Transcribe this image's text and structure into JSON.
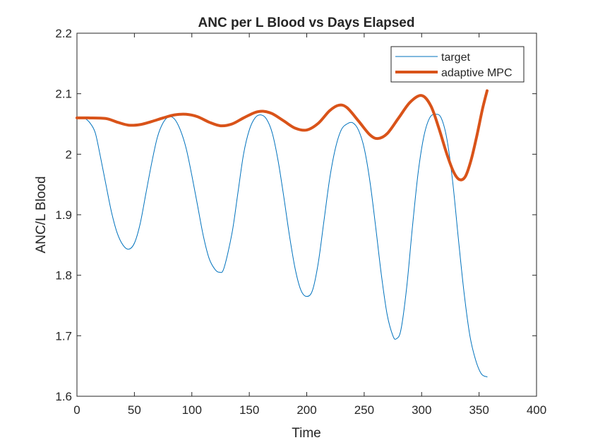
{
  "chart_data": {
    "type": "line",
    "title": "ANC per L Blood vs Days Elapsed",
    "xlabel": "Time",
    "ylabel": "ANC/L Blood",
    "xlim": [
      0,
      400
    ],
    "ylim": [
      1.6,
      2.2
    ],
    "xticks": [
      "0",
      "50",
      "100",
      "150",
      "200",
      "250",
      "300",
      "350",
      "400"
    ],
    "yticks": [
      "1.6",
      "1.7",
      "1.8",
      "1.9",
      "2",
      "2.1",
      "2.2"
    ],
    "grid": false,
    "legend_position": "top-right",
    "series": [
      {
        "name": "target",
        "color": "#0072BD",
        "points": [
          [
            0,
            2.06
          ],
          [
            5,
            2.06
          ],
          [
            8,
            2.058
          ],
          [
            12,
            2.05
          ],
          [
            16,
            2.035
          ],
          [
            20,
            2.0
          ],
          [
            25,
            1.952
          ],
          [
            30,
            1.905
          ],
          [
            35,
            1.87
          ],
          [
            40,
            1.85
          ],
          [
            45,
            1.843
          ],
          [
            50,
            1.853
          ],
          [
            55,
            1.885
          ],
          [
            60,
            1.935
          ],
          [
            65,
            1.985
          ],
          [
            70,
            2.028
          ],
          [
            75,
            2.052
          ],
          [
            80,
            2.062
          ],
          [
            85,
            2.058
          ],
          [
            90,
            2.04
          ],
          [
            95,
            2.01
          ],
          [
            100,
            1.965
          ],
          [
            105,
            1.915
          ],
          [
            110,
            1.865
          ],
          [
            115,
            1.828
          ],
          [
            120,
            1.81
          ],
          [
            124,
            1.805
          ],
          [
            128,
            1.812
          ],
          [
            135,
            1.87
          ],
          [
            140,
            1.935
          ],
          [
            145,
            2.0
          ],
          [
            150,
            2.04
          ],
          [
            155,
            2.06
          ],
          [
            160,
            2.065
          ],
          [
            165,
            2.058
          ],
          [
            170,
            2.035
          ],
          [
            175,
            1.99
          ],
          [
            180,
            1.93
          ],
          [
            185,
            1.865
          ],
          [
            190,
            1.81
          ],
          [
            195,
            1.775
          ],
          [
            200,
            1.765
          ],
          [
            205,
            1.775
          ],
          [
            210,
            1.82
          ],
          [
            215,
            1.89
          ],
          [
            220,
            1.96
          ],
          [
            225,
            2.01
          ],
          [
            230,
            2.04
          ],
          [
            235,
            2.05
          ],
          [
            240,
            2.052
          ],
          [
            245,
            2.04
          ],
          [
            250,
            2.01
          ],
          [
            255,
            1.955
          ],
          [
            260,
            1.88
          ],
          [
            265,
            1.8
          ],
          [
            270,
            1.735
          ],
          [
            275,
            1.7
          ],
          [
            278,
            1.695
          ],
          [
            282,
            1.71
          ],
          [
            287,
            1.78
          ],
          [
            292,
            1.88
          ],
          [
            297,
            1.97
          ],
          [
            302,
            2.03
          ],
          [
            307,
            2.06
          ],
          [
            312,
            2.066
          ],
          [
            317,
            2.06
          ],
          [
            322,
            2.025
          ],
          [
            327,
            1.955
          ],
          [
            332,
            1.86
          ],
          [
            337,
            1.77
          ],
          [
            342,
            1.7
          ],
          [
            347,
            1.66
          ],
          [
            352,
            1.637
          ],
          [
            357,
            1.632
          ]
        ]
      },
      {
        "name": "adaptive MPC",
        "color": "#D95319",
        "points": [
          [
            0,
            2.06
          ],
          [
            10,
            2.06
          ],
          [
            25,
            2.059
          ],
          [
            35,
            2.053
          ],
          [
            45,
            2.048
          ],
          [
            55,
            2.049
          ],
          [
            65,
            2.054
          ],
          [
            75,
            2.06
          ],
          [
            85,
            2.065
          ],
          [
            95,
            2.066
          ],
          [
            105,
            2.062
          ],
          [
            115,
            2.053
          ],
          [
            125,
            2.047
          ],
          [
            135,
            2.05
          ],
          [
            145,
            2.06
          ],
          [
            155,
            2.069
          ],
          [
            162,
            2.071
          ],
          [
            170,
            2.067
          ],
          [
            180,
            2.055
          ],
          [
            190,
            2.043
          ],
          [
            200,
            2.04
          ],
          [
            210,
            2.051
          ],
          [
            220,
            2.072
          ],
          [
            228,
            2.081
          ],
          [
            235,
            2.077
          ],
          [
            245,
            2.055
          ],
          [
            255,
            2.032
          ],
          [
            262,
            2.026
          ],
          [
            270,
            2.034
          ],
          [
            280,
            2.06
          ],
          [
            290,
            2.086
          ],
          [
            300,
            2.097
          ],
          [
            308,
            2.08
          ],
          [
            315,
            2.043
          ],
          [
            322,
            2.0
          ],
          [
            328,
            1.97
          ],
          [
            333,
            1.958
          ],
          [
            338,
            1.963
          ],
          [
            343,
            1.99
          ],
          [
            348,
            2.03
          ],
          [
            353,
            2.075
          ],
          [
            357,
            2.105
          ]
        ]
      }
    ]
  }
}
